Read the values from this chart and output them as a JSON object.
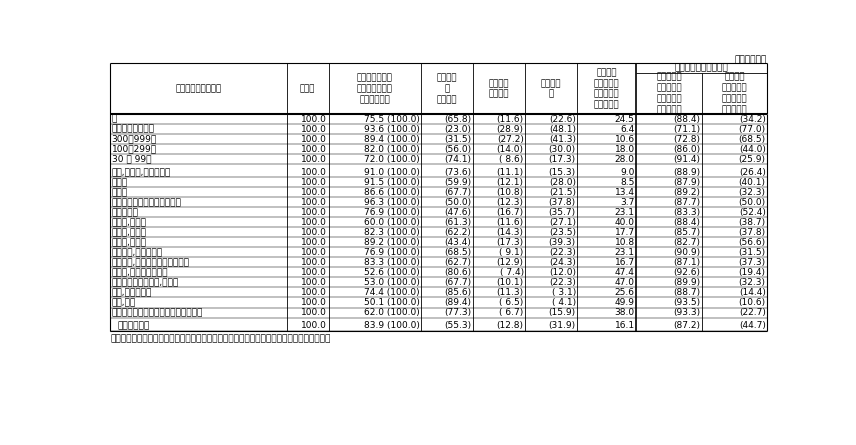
{
  "unit_text": "（単位：％）",
  "col_headers_top": [
    "",
    "",
    "",
    "",
    "",
    "",
    "",
    "（再掲）　制度がある",
    ""
  ],
  "col_headers": [
    "企業規模・産業・年",
    "全企業",
    "退職給付（一時\n金・年金）制度\nがある企業注",
    "退職一時\n金\n制度のみ",
    "退職年金\n制度のみ",
    "両制度併\n用",
    "退職給付\n（一時金・\n年金）制度\nがない企業",
    "退職一時金\n制度がある\n（両制度併\n用を含む）",
    "退職年金\n制度がある\n（両制度併\n用を含む）"
  ],
  "rows": [
    [
      "計",
      "100.0",
      "75.5 (100.0)",
      "(65.8)",
      "(11.6)",
      "(22.6)",
      "24.5",
      "(88.4)",
      "(34.2)"
    ],
    [
      "１，０００人以上",
      "100.0",
      "93.6 (100.0)",
      "(23.0)",
      "(28.9)",
      "(48.1)",
      "6.4",
      "(71.1)",
      "(77.0)"
    ],
    [
      "300～999人",
      "100.0",
      "89.4 (100.0)",
      "(31.5)",
      "(27.2)",
      "(41.3)",
      "10.6",
      "(72.8)",
      "(68.5)"
    ],
    [
      "100～299人",
      "100.0",
      "82.0 (100.0)",
      "(56.0)",
      "(14.0)",
      "(30.0)",
      "18.0",
      "(86.0)",
      "(44.0)"
    ],
    [
      "30 ～ 99人",
      "100.0",
      "72.0 (100.0)",
      "(74.1)",
      "( 8.6)",
      "(17.3)",
      "28.0",
      "(91.4)",
      "(25.9)"
    ],
    null,
    [
      "鉱業,採石業,砂利採取業",
      "100.0",
      "91.0 (100.0)",
      "(73.6)",
      "(11.1)",
      "(15.3)",
      "9.0",
      "(88.9)",
      "(26.4)"
    ],
    [
      "建設業",
      "100.0",
      "91.5 (100.0)",
      "(59.9)",
      "(12.1)",
      "(28.0)",
      "8.5",
      "(87.9)",
      "(40.1)"
    ],
    [
      "製造業",
      "100.0",
      "86.6 (100.0)",
      "(67.7)",
      "(10.8)",
      "(21.5)",
      "13.4",
      "(89.2)",
      "(32.3)"
    ],
    [
      "電気・ガス・熱供給・水道業",
      "100.0",
      "96.3 (100.0)",
      "(50.0)",
      "(12.3)",
      "(37.8)",
      "3.7",
      "(87.7)",
      "(50.0)"
    ],
    [
      "情報通信業",
      "100.0",
      "76.9 (100.0)",
      "(47.6)",
      "(16.7)",
      "(35.7)",
      "23.1",
      "(83.3)",
      "(52.4)"
    ],
    [
      "運輸業,郵便業",
      "100.0",
      "60.0 (100.0)",
      "(61.3)",
      "(11.6)",
      "(27.1)",
      "40.0",
      "(88.4)",
      "(38.7)"
    ],
    [
      "卸売業,小売業",
      "100.0",
      "82.3 (100.0)",
      "(62.2)",
      "(14.3)",
      "(23.5)",
      "17.7",
      "(85.7)",
      "(37.8)"
    ],
    [
      "金融業,保険業",
      "100.0",
      "89.2 (100.0)",
      "(43.4)",
      "(17.3)",
      "(39.3)",
      "10.8",
      "(82.7)",
      "(56.6)"
    ],
    [
      "不動産業,物品賃貸業",
      "100.0",
      "76.9 (100.0)",
      "(68.5)",
      "( 9.1)",
      "(22.3)",
      "23.1",
      "(90.9)",
      "(31.5)"
    ],
    [
      "学術研究,専門・技術サービス業",
      "100.0",
      "83.3 (100.0)",
      "(62.7)",
      "(12.9)",
      "(24.3)",
      "16.7",
      "(87.1)",
      "(37.3)"
    ],
    [
      "宿泊業,飲食サービス業",
      "100.0",
      "52.6 (100.0)",
      "(80.6)",
      "( 7.4)",
      "(12.0)",
      "47.4",
      "(92.6)",
      "(19.4)"
    ],
    [
      "生活関連サービス業,娯楽業",
      "100.0",
      "53.0 (100.0)",
      "(67.7)",
      "(10.1)",
      "(22.3)",
      "47.0",
      "(89.9)",
      "(32.3)"
    ],
    [
      "教育,学習支援業",
      "100.0",
      "74.4 (100.0)",
      "(85.6)",
      "(11.3)",
      "( 3.1)",
      "25.6",
      "(88.7)",
      "(14.4)"
    ],
    [
      "医療,福祉",
      "100.0",
      "50.1 (100.0)",
      "(89.4)",
      "( 6.5)",
      "( 4.1)",
      "49.9",
      "(93.5)",
      "(10.6)"
    ],
    [
      "サービス業（他に分類されないもの）",
      "100.0",
      "62.0 (100.0)",
      "(77.3)",
      "( 6.7)",
      "(15.9)",
      "38.0",
      "(93.3)",
      "(22.7)"
    ],
    null,
    [
      "　平成２０年",
      "100.0",
      "83.9 (100.0)",
      "(55.3)",
      "(12.8)",
      "(31.9)",
      "16.1",
      "(87.2)",
      "(44.7)"
    ]
  ],
  "footnote": "注：　（　）内の数値は、退職給付（一時金・年金）制度がある企業に対する割合である。",
  "col_widths_ratio": [
    2.1,
    0.5,
    1.1,
    0.62,
    0.62,
    0.62,
    0.7,
    0.78,
    0.78
  ],
  "font_size_data": 6.5,
  "font_size_header": 6.2,
  "font_size_unit": 6.5,
  "font_size_footnote": 6.5
}
